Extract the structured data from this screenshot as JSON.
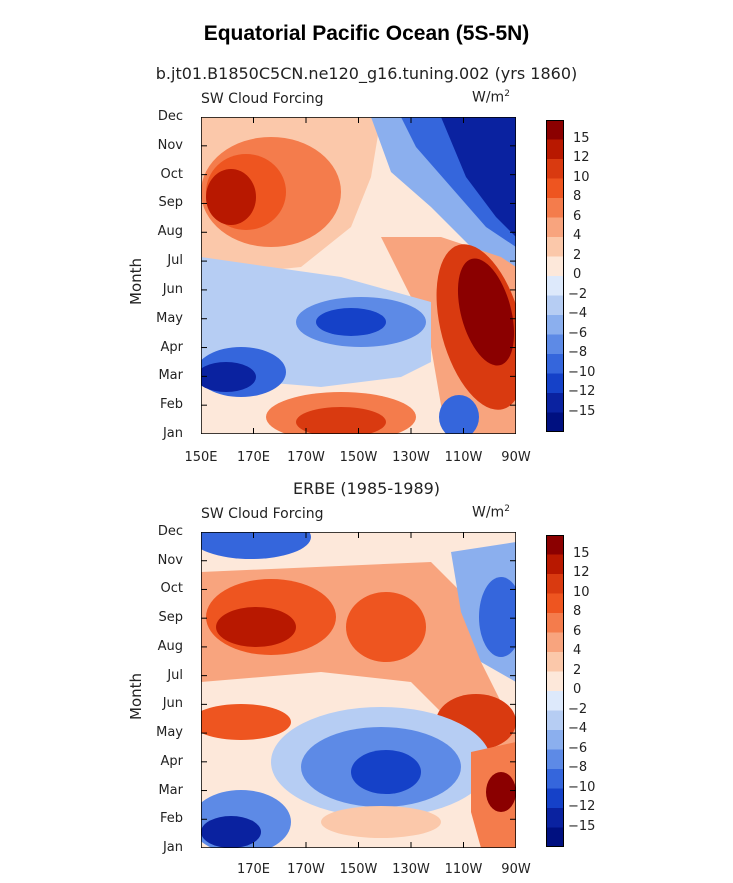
{
  "title": "Equatorial Pacific Ocean (5S-5N)",
  "chart_data": [
    {
      "type": "heatmap",
      "subtitle": "b.jt01.B1850C5CN.ne120_g16.tuning.002 (yrs 1860)",
      "left_label": "SW Cloud Forcing",
      "right_label_base": "W/m",
      "right_label_exp": "2",
      "ylabel": "Month",
      "xlabel": "",
      "y_ticks": [
        "Jan",
        "Feb",
        "Mar",
        "Apr",
        "May",
        "Jun",
        "Jul",
        "Aug",
        "Sep",
        "Oct",
        "Nov",
        "Dec"
      ],
      "x_ticks": [
        "150E",
        "170E",
        "170W",
        "150W",
        "130W",
        "110W",
        "90W"
      ],
      "x_range": [
        150,
        270
      ],
      "levels": [
        "15",
        "12",
        "10",
        "8",
        "6",
        "4",
        "2",
        "0",
        "-2",
        "-4",
        "-6",
        "-8",
        "-10",
        "-12",
        "-15"
      ],
      "colors": [
        "#8b0000",
        "#b81800",
        "#d93a10",
        "#ee5520",
        "#f47c4c",
        "#f8a47e",
        "#fbc8aa",
        "#fde8da",
        "#dde9fb",
        "#b6cdf3",
        "#8bafee",
        "#5d8ae6",
        "#3566dc",
        "#1541c8",
        "#0a22a0",
        "#001080"
      ],
      "grid": false
    },
    {
      "type": "heatmap",
      "subtitle": "ERBE (1985-1989)",
      "left_label": "SW Cloud Forcing",
      "right_label_base": "W/m",
      "right_label_exp": "2",
      "ylabel": "Month",
      "xlabel": "",
      "y_ticks": [
        "Jan",
        "Feb",
        "Mar",
        "Apr",
        "May",
        "Jun",
        "Jul",
        "Aug",
        "Sep",
        "Oct",
        "Nov",
        "Dec"
      ],
      "x_ticks": [
        "",
        "170E",
        "170W",
        "150W",
        "130W",
        "110W",
        "90W"
      ],
      "x_range": [
        150,
        270
      ],
      "levels": [
        "15",
        "12",
        "10",
        "8",
        "6",
        "4",
        "2",
        "0",
        "-2",
        "-4",
        "-6",
        "-8",
        "-10",
        "-12",
        "-15"
      ],
      "colors": [
        "#8b0000",
        "#b81800",
        "#d93a10",
        "#ee5520",
        "#f47c4c",
        "#f8a47e",
        "#fbc8aa",
        "#fde8da",
        "#dde9fb",
        "#b6cdf3",
        "#8bafee",
        "#5d8ae6",
        "#3566dc",
        "#1541c8",
        "#0a22a0",
        "#001080"
      ],
      "grid": false
    }
  ]
}
